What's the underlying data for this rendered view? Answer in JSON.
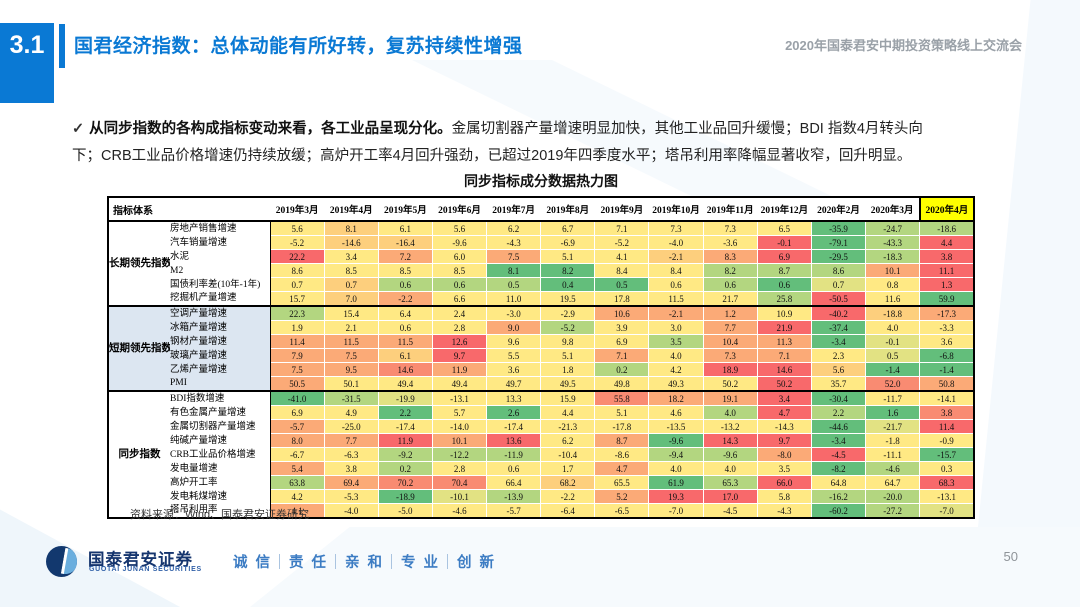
{
  "header": {
    "section_number": "3.1",
    "title": "国君经济指数：总体动能有所好转，复苏持续性增强",
    "event": "2020年国泰君安中期投资策略线上交流会"
  },
  "body": {
    "check": "✓",
    "bullet_bold": "从同步指数的各构成指标变动来看，各工业品呈现分化。",
    "bullet_rest": "金属切割器产量增速明显加快，其他工业品回升缓慢；BDI 指数4月转头向下；CRB工业品价格增速仍持续放缓；高炉开工率4月回升强劲，已超过2019年四季度水平；塔吊利用率降幅显著收窄，回升明显。"
  },
  "chart_data": {
    "type": "heatmap",
    "title": "同步指标成分数据热力图",
    "corner_header": "指标体系",
    "columns": [
      "2019年3月",
      "2019年4月",
      "2019年5月",
      "2019年6月",
      "2019年7月",
      "2019年8月",
      "2019年9月",
      "2019年10月",
      "2019年11月",
      "2019年12月",
      "2020年2月",
      "2020年3月",
      "2020年4月"
    ],
    "highlight_column": "2020年4月",
    "highlight_color": "#ffff00",
    "palette": {
      "r": "#f8696b",
      "ro": "#f98b72",
      "o": "#fbaa77",
      "yo": "#fdcf7d",
      "y": "#ffe984",
      "ylg": "#e2e283",
      "lg": "#b3d680",
      "g": "#63be7b"
    },
    "groups": [
      {
        "label": "长期领先指数指标",
        "shaded": false,
        "rows": [
          {
            "name": "房地产销售增速",
            "values": [
              "5.6",
              "8.1",
              "6.1",
              "5.6",
              "6.2",
              "6.7",
              "7.1",
              "7.3",
              "7.3",
              "6.5",
              "-35.9",
              "-24.7",
              "-18.6"
            ],
            "colors": [
              "y",
              "yo",
              "y",
              "y",
              "y",
              "y",
              "y",
              "y",
              "y",
              "y",
              "g",
              "lg",
              "lg"
            ]
          },
          {
            "name": "汽车销量增速",
            "values": [
              "-5.2",
              "-14.6",
              "-16.4",
              "-9.6",
              "-4.3",
              "-6.9",
              "-5.2",
              "-4.0",
              "-3.6",
              "-0.1",
              "-79.1",
              "-43.3",
              "4.4"
            ],
            "colors": [
              "y",
              "yo",
              "yo",
              "y",
              "y",
              "y",
              "y",
              "y",
              "y",
              "r",
              "g",
              "lg",
              "r"
            ]
          },
          {
            "name": "水泥",
            "values": [
              "22.2",
              "3.4",
              "7.2",
              "6.0",
              "7.5",
              "5.1",
              "4.1",
              "-2.1",
              "8.3",
              "6.9",
              "-29.5",
              "-18.3",
              "3.8"
            ],
            "colors": [
              "r",
              "y",
              "o",
              "y",
              "o",
              "y",
              "y",
              "yo",
              "o",
              "r",
              "g",
              "lg",
              "r"
            ]
          },
          {
            "name": "M2",
            "values": [
              "8.6",
              "8.5",
              "8.5",
              "8.5",
              "8.1",
              "8.2",
              "8.4",
              "8.4",
              "8.2",
              "8.7",
              "8.6",
              "10.1",
              "11.1"
            ],
            "colors": [
              "y",
              "y",
              "y",
              "y",
              "g",
              "g",
              "y",
              "y",
              "lg",
              "lg",
              "lg",
              "o",
              "r"
            ]
          },
          {
            "name": "国债利率差(10年-1年)",
            "values": [
              "0.7",
              "0.7",
              "0.6",
              "0.6",
              "0.5",
              "0.4",
              "0.5",
              "0.6",
              "0.6",
              "0.6",
              "0.7",
              "0.8",
              "1.3"
            ],
            "colors": [
              "y",
              "yo",
              "lg",
              "lg",
              "lg",
              "g",
              "g",
              "y",
              "lg",
              "g",
              "ylg",
              "y",
              "r"
            ]
          },
          {
            "name": "挖掘机产量增速",
            "values": [
              "15.7",
              "7.0",
              "-2.2",
              "6.6",
              "11.0",
              "19.5",
              "17.8",
              "11.5",
              "21.7",
              "25.8",
              "-50.5",
              "11.6",
              "59.9"
            ],
            "colors": [
              "y",
              "yo",
              "o",
              "y",
              "y",
              "y",
              "y",
              "y",
              "y",
              "lg",
              "r",
              "y",
              "g"
            ]
          }
        ]
      },
      {
        "label": "短期领先指数指标",
        "shaded": true,
        "rows": [
          {
            "name": "空调产量增速",
            "values": [
              "22.3",
              "15.4",
              "6.4",
              "2.4",
              "-3.0",
              "-2.9",
              "10.6",
              "-2.1",
              "1.2",
              "10.9",
              "-40.2",
              "-18.8",
              "-17.3"
            ],
            "colors": [
              "lg",
              "y",
              "y",
              "y",
              "y",
              "y",
              "o",
              "o",
              "o",
              "y",
              "r",
              "yo",
              "o"
            ]
          },
          {
            "name": "冰箱产量增速",
            "values": [
              "1.9",
              "2.1",
              "0.6",
              "2.8",
              "9.0",
              "-5.2",
              "3.9",
              "3.0",
              "7.7",
              "21.9",
              "-37.4",
              "4.0",
              "-3.3"
            ],
            "colors": [
              "y",
              "y",
              "y",
              "y",
              "o",
              "lg",
              "y",
              "y",
              "o",
              "r",
              "g",
              "y",
              "y"
            ]
          },
          {
            "name": "钢材产量增速",
            "values": [
              "11.4",
              "11.5",
              "11.5",
              "12.6",
              "9.6",
              "9.8",
              "6.9",
              "3.5",
              "10.4",
              "11.3",
              "-3.4",
              "-0.1",
              "3.6"
            ],
            "colors": [
              "o",
              "o",
              "o",
              "r",
              "y",
              "y",
              "y",
              "lg",
              "o",
              "o",
              "g",
              "ylg",
              "y"
            ]
          },
          {
            "name": "玻璃产量增速",
            "values": [
              "7.9",
              "7.5",
              "6.1",
              "9.7",
              "5.5",
              "5.1",
              "7.1",
              "4.0",
              "7.3",
              "7.1",
              "2.3",
              "0.5",
              "-6.8"
            ],
            "colors": [
              "o",
              "o",
              "yo",
              "r",
              "y",
              "y",
              "o",
              "y",
              "o",
              "o",
              "y",
              "ylg",
              "g"
            ]
          },
          {
            "name": "乙烯产量增速",
            "values": [
              "7.5",
              "9.5",
              "14.6",
              "11.9",
              "3.6",
              "1.8",
              "0.2",
              "4.2",
              "18.9",
              "14.6",
              "5.6",
              "-1.4",
              "-1.4"
            ],
            "colors": [
              "o",
              "o",
              "ro",
              "o",
              "y",
              "y",
              "lg",
              "y",
              "r",
              "r",
              "yo",
              "g",
              "g"
            ]
          },
          {
            "name": "PMI",
            "values": [
              "50.5",
              "50.1",
              "49.4",
              "49.4",
              "49.7",
              "49.5",
              "49.8",
              "49.3",
              "50.2",
              "50.2",
              "35.7",
              "52.0",
              "50.8"
            ],
            "colors": [
              "o",
              "y",
              "y",
              "y",
              "y",
              "y",
              "y",
              "y",
              "y",
              "r",
              "y",
              "ro",
              "o"
            ]
          }
        ]
      },
      {
        "label": "同步指数",
        "shaded": false,
        "rows": [
          {
            "name": "BDI指数增速",
            "values": [
              "-41.0",
              "-31.5",
              "-19.9",
              "-13.1",
              "13.3",
              "15.9",
              "55.8",
              "18.2",
              "19.1",
              "3.4",
              "-30.4",
              "-11.7",
              "-14.1"
            ],
            "colors": [
              "g",
              "lg",
              "ylg",
              "y",
              "y",
              "y",
              "ro",
              "o",
              "o",
              "r",
              "g",
              "y",
              "y"
            ]
          },
          {
            "name": "有色金属产量增速",
            "values": [
              "6.9",
              "4.9",
              "2.2",
              "5.7",
              "2.6",
              "4.4",
              "5.1",
              "4.6",
              "4.0",
              "4.7",
              "2.2",
              "1.6",
              "3.8"
            ],
            "colors": [
              "y",
              "y",
              "g",
              "y",
              "g",
              "y",
              "y",
              "y",
              "lg",
              "r",
              "lg",
              "g",
              "ro"
            ]
          },
          {
            "name": "金属切割器产量增速",
            "values": [
              "-5.7",
              "-25.0",
              "-17.4",
              "-14.0",
              "-17.4",
              "-21.3",
              "-17.8",
              "-13.5",
              "-13.2",
              "-14.3",
              "-44.6",
              "-21.7",
              "11.4"
            ],
            "colors": [
              "o",
              "y",
              "y",
              "y",
              "y",
              "y",
              "y",
              "y",
              "y",
              "y",
              "g",
              "ylg",
              "r"
            ]
          },
          {
            "name": "纯碱产量增速",
            "values": [
              "8.0",
              "7.7",
              "11.9",
              "10.1",
              "13.6",
              "6.2",
              "8.7",
              "-9.6",
              "14.3",
              "9.7",
              "-3.4",
              "-1.8",
              "-0.9"
            ],
            "colors": [
              "o",
              "o",
              "r",
              "o",
              "r",
              "y",
              "o",
              "g",
              "r",
              "r",
              "g",
              "y",
              "y"
            ]
          },
          {
            "name": "CRB工业品价格增速",
            "values": [
              "-6.7",
              "-6.3",
              "-9.2",
              "-12.2",
              "-11.9",
              "-10.4",
              "-8.6",
              "-9.4",
              "-9.6",
              "-8.0",
              "-4.5",
              "-11.1",
              "-15.7"
            ],
            "colors": [
              "y",
              "y",
              "lg",
              "lg",
              "lg",
              "y",
              "y",
              "lg",
              "lg",
              "o",
              "r",
              "y",
              "g"
            ]
          },
          {
            "name": "发电量增速",
            "values": [
              "5.4",
              "3.8",
              "0.2",
              "2.8",
              "0.6",
              "1.7",
              "4.7",
              "4.0",
              "4.0",
              "3.5",
              "-8.2",
              "-4.6",
              "0.3"
            ],
            "colors": [
              "o",
              "y",
              "lg",
              "y",
              "y",
              "y",
              "o",
              "y",
              "y",
              "y",
              "g",
              "lg",
              "y"
            ]
          },
          {
            "name": "高炉开工率",
            "values": [
              "63.8",
              "69.4",
              "70.2",
              "70.4",
              "66.4",
              "68.2",
              "65.5",
              "61.9",
              "65.3",
              "66.0",
              "64.8",
              "64.7",
              "68.3"
            ],
            "colors": [
              "lg",
              "o",
              "ro",
              "ro",
              "y",
              "yo",
              "y",
              "g",
              "lg",
              "r",
              "y",
              "y",
              "r"
            ]
          },
          {
            "name": "发电耗煤增速",
            "values": [
              "4.2",
              "-5.3",
              "-18.9",
              "-10.1",
              "-13.9",
              "-2.2",
              "5.2",
              "19.3",
              "17.0",
              "5.8",
              "-16.2",
              "-20.0",
              "-13.1"
            ],
            "colors": [
              "y",
              "y",
              "g",
              "ylg",
              "lg",
              "y",
              "o",
              "r",
              "r",
              "y",
              "lg",
              "lg",
              "y"
            ]
          },
          {
            "name": "塔吊利用率",
            "values": [
              "4.1",
              "-4.0",
              "-5.0",
              "-4.6",
              "-5.7",
              "-6.4",
              "-6.5",
              "-7.0",
              "-4.5",
              "-4.3",
              "-60.2",
              "-27.2",
              "-7.0"
            ],
            "colors": [
              "o",
              "y",
              "y",
              "y",
              "y",
              "y",
              "y",
              "y",
              "y",
              "y",
              "g",
              "lg",
              "ylg"
            ]
          }
        ]
      }
    ]
  },
  "source": "资料来源：Wind、国泰君安证券研究",
  "footer": {
    "brand": "国泰君安证券",
    "brand_en": "GUOTAI JUNAN SECURITIES",
    "slogan": [
      "诚信",
      "责任",
      "亲和",
      "专业",
      "创新"
    ],
    "page_number": "50"
  }
}
